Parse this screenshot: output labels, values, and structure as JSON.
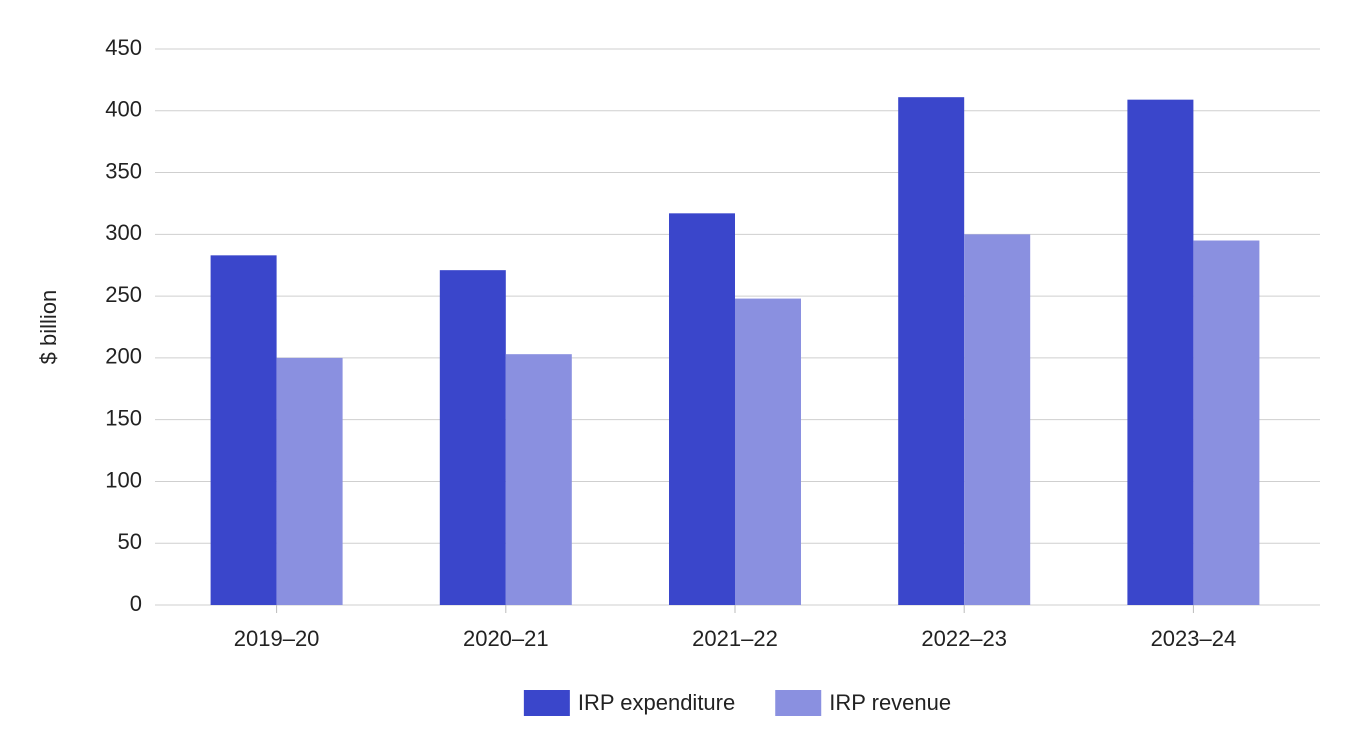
{
  "chart_data": {
    "type": "bar",
    "y_label": "$ billion",
    "categories": [
      "2019–20",
      "2020–21",
      "2021–22",
      "2022–23",
      "2023–24"
    ],
    "series": [
      {
        "name": "IRP expenditure",
        "color": "#3a46cb",
        "values": [
          283,
          271,
          317,
          411,
          409
        ]
      },
      {
        "name": "IRP revenue",
        "color": "#8a90e0",
        "values": [
          200,
          203,
          248,
          300,
          295
        ]
      }
    ],
    "ylim": [
      0,
      450
    ],
    "yticks": [
      0,
      50,
      100,
      150,
      200,
      250,
      300,
      350,
      400,
      450
    ],
    "grid": true,
    "legend": "bottom"
  }
}
